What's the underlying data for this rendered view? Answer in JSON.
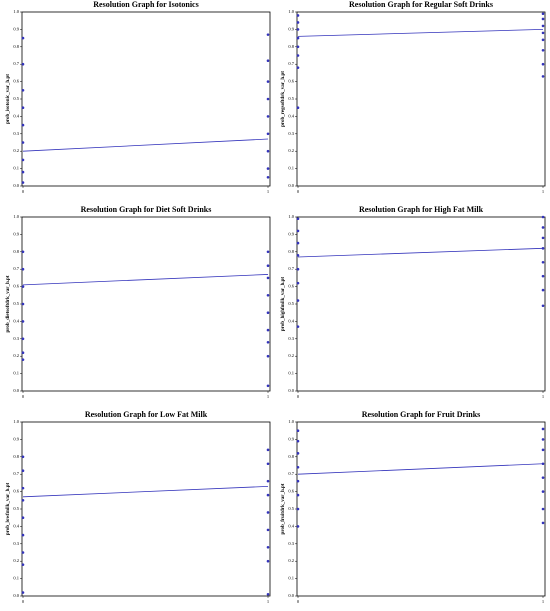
{
  "chart_data": [
    {
      "type": "scatter",
      "title": "Resolution Graph for Isotonics",
      "y_label": "prob_isotonic_var_h.pt",
      "points": {
        "x": [
          0,
          0,
          0,
          0,
          0,
          0,
          0,
          0,
          0,
          1,
          1,
          1,
          1,
          1,
          1,
          1,
          1,
          1
        ],
        "values": [
          0.02,
          0.08,
          0.15,
          0.25,
          0.35,
          0.45,
          0.55,
          0.7,
          0.85,
          0.05,
          0.1,
          0.2,
          0.3,
          0.4,
          0.5,
          0.6,
          0.72,
          0.87
        ]
      },
      "fit_line": {
        "x": [
          0,
          1
        ],
        "values": [
          0.2,
          0.27
        ]
      },
      "color": "#3333bb",
      "xlim": [
        0,
        1
      ],
      "xticks": [
        0,
        1
      ],
      "ylim": [
        0,
        1
      ],
      "yticks": [
        {
          "value": 0,
          "label": "0.0"
        },
        0.1,
        0.2,
        0.3,
        0.4,
        0.5,
        0.6,
        0.7,
        0.8,
        0.9,
        {
          "value": 1,
          "label": "1.0"
        }
      ]
    },
    {
      "type": "scatter",
      "title": "Resolution Graph for Regular Soft Drinks",
      "y_label": "prob_regsoftdrk_var_h.pt",
      "points": {
        "x": [
          0,
          0,
          0,
          0,
          0,
          0,
          0,
          0,
          1,
          1,
          1,
          1,
          1,
          1,
          1,
          1
        ],
        "values": [
          0.45,
          0.68,
          0.75,
          0.8,
          0.85,
          0.9,
          0.94,
          0.98,
          0.63,
          0.7,
          0.78,
          0.84,
          0.88,
          0.92,
          0.96,
          0.99
        ]
      },
      "fit_line": {
        "x": [
          0,
          1
        ],
        "values": [
          0.86,
          0.9
        ]
      },
      "color": "#3333bb",
      "xlim": [
        0,
        1
      ],
      "xticks": [
        0,
        1
      ],
      "ylim": [
        0,
        1
      ],
      "yticks": [
        {
          "value": 0,
          "label": "0.0"
        },
        0.1,
        0.2,
        0.3,
        0.4,
        0.5,
        0.6,
        0.7,
        0.8,
        0.9,
        {
          "value": 1,
          "label": "1.0"
        }
      ]
    },
    {
      "type": "scatter",
      "title": "Resolution Graph for Diet Soft Drinks",
      "y_label": "prob_dietsoftdrk_var_h.pt",
      "points": {
        "x": [
          0,
          0,
          0,
          0,
          0,
          0,
          0,
          0,
          1,
          1,
          1,
          1,
          1,
          1,
          1,
          1,
          1
        ],
        "values": [
          0.18,
          0.22,
          0.3,
          0.4,
          0.5,
          0.6,
          0.7,
          0.8,
          0.03,
          0.2,
          0.28,
          0.35,
          0.45,
          0.55,
          0.65,
          0.72,
          0.8
        ]
      },
      "fit_line": {
        "x": [
          0,
          1
        ],
        "values": [
          0.61,
          0.67
        ]
      },
      "color": "#3333bb",
      "xlim": [
        0,
        1
      ],
      "xticks": [
        0,
        1
      ],
      "ylim": [
        0,
        1
      ],
      "yticks": [
        {
          "value": 0,
          "label": "0.0"
        },
        0.1,
        0.2,
        0.3,
        0.4,
        0.5,
        0.6,
        0.7,
        0.8,
        0.9,
        {
          "value": 1,
          "label": "1.0"
        }
      ]
    },
    {
      "type": "scatter",
      "title": "Resolution Graph for High Fat Milk",
      "y_label": "prob_highfmilk_var_h.pt",
      "points": {
        "x": [
          0,
          0,
          0,
          0,
          0,
          0,
          0,
          0,
          1,
          1,
          1,
          1,
          1,
          1,
          1,
          1
        ],
        "values": [
          0.37,
          0.52,
          0.62,
          0.7,
          0.78,
          0.85,
          0.92,
          0.99,
          0.49,
          0.58,
          0.66,
          0.74,
          0.82,
          0.88,
          0.94,
          1.0
        ]
      },
      "fit_line": {
        "x": [
          0,
          1
        ],
        "values": [
          0.77,
          0.82
        ]
      },
      "color": "#3333bb",
      "xlim": [
        0,
        1
      ],
      "xticks": [
        0,
        1
      ],
      "ylim": [
        0,
        1
      ],
      "yticks": [
        {
          "value": 0,
          "label": "0.0"
        },
        0.1,
        0.2,
        0.3,
        0.4,
        0.5,
        0.6,
        0.7,
        0.8,
        0.9,
        {
          "value": 1,
          "label": "1.0"
        }
      ]
    },
    {
      "type": "scatter",
      "title": "Resolution Graph for Low Fat Milk",
      "y_label": "prob_lowfmilk_var_h.pt",
      "points": {
        "x": [
          0,
          0,
          0,
          0,
          0,
          0,
          0,
          0,
          0,
          1,
          1,
          1,
          1,
          1,
          1,
          1,
          1,
          1
        ],
        "values": [
          0.02,
          0.18,
          0.25,
          0.35,
          0.45,
          0.55,
          0.62,
          0.72,
          0.8,
          0.01,
          0.2,
          0.28,
          0.38,
          0.48,
          0.58,
          0.66,
          0.76,
          0.84
        ]
      },
      "fit_line": {
        "x": [
          0,
          1
        ],
        "values": [
          0.57,
          0.63
        ]
      },
      "color": "#3333bb",
      "xlim": [
        0,
        1
      ],
      "xticks": [
        0,
        1
      ],
      "ylim": [
        0,
        1
      ],
      "yticks": [
        {
          "value": 0,
          "label": "0.0"
        },
        0.1,
        0.2,
        0.3,
        0.4,
        0.5,
        0.6,
        0.7,
        0.8,
        0.9,
        {
          "value": 1,
          "label": "1.0"
        }
      ]
    },
    {
      "type": "scatter",
      "title": "Resolution Graph for Fruit Drinks",
      "y_label": "prob_fruitdrk_var_h.pt",
      "points": {
        "x": [
          0,
          0,
          0,
          0,
          0,
          0,
          0,
          0,
          1,
          1,
          1,
          1,
          1,
          1,
          1,
          1
        ],
        "values": [
          0.4,
          0.5,
          0.58,
          0.66,
          0.74,
          0.82,
          0.89,
          0.95,
          0.42,
          0.5,
          0.6,
          0.68,
          0.76,
          0.84,
          0.9,
          0.96
        ]
      },
      "fit_line": {
        "x": [
          0,
          1
        ],
        "values": [
          0.7,
          0.76
        ]
      },
      "color": "#3333bb",
      "xlim": [
        0,
        1
      ],
      "xticks": [
        0,
        1
      ],
      "ylim": [
        0,
        1
      ],
      "yticks": [
        {
          "value": 0,
          "label": "0.0"
        },
        0.1,
        0.2,
        0.3,
        0.4,
        0.5,
        0.6,
        0.7,
        0.8,
        0.9,
        {
          "value": 1,
          "label": "1.0"
        }
      ]
    }
  ]
}
